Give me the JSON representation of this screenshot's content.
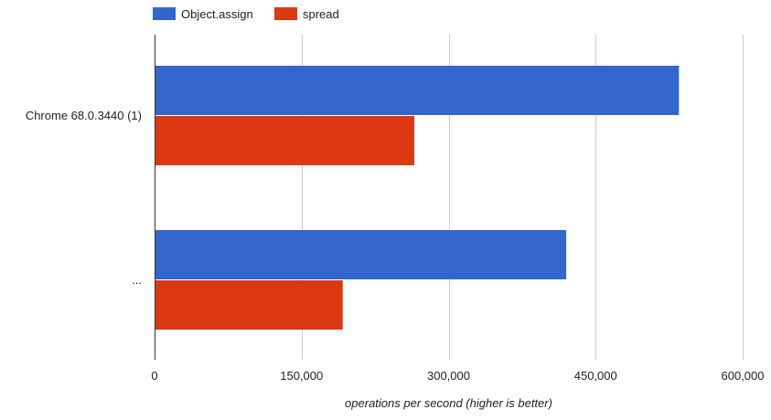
{
  "chart_data": {
    "type": "bar",
    "orientation": "horizontal",
    "categories": [
      "Chrome 68.0.3440 (1)",
      "..."
    ],
    "series": [
      {
        "name": "Object.assign",
        "color": "#3366cc",
        "values": [
          535000,
          420000
        ]
      },
      {
        "name": "spread",
        "color": "#dc3912",
        "values": [
          265000,
          192000
        ]
      }
    ],
    "xlim": [
      0,
      600000
    ],
    "xticks": [
      0,
      150000,
      300000,
      450000,
      600000
    ],
    "xtick_labels": [
      "0",
      "150,000",
      "300,000",
      "450,000",
      "600,000"
    ],
    "xlabel": "operations per second (higher is better)",
    "ylabel": "",
    "grid": true,
    "legend_position": "top-left"
  }
}
